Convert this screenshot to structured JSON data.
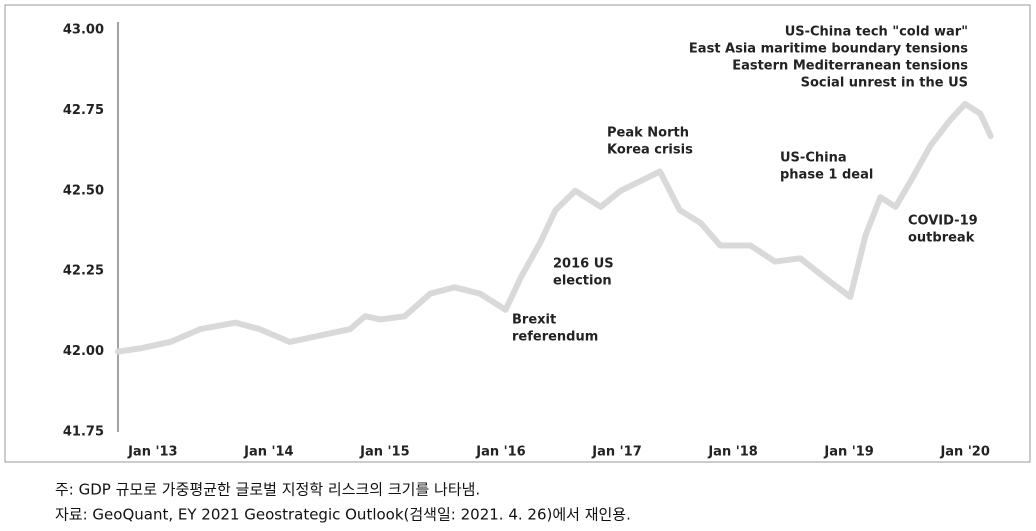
{
  "chart_data": {
    "type": "line",
    "x": [
      2012.7,
      2012.89,
      2013.15,
      2013.41,
      2013.71,
      2013.92,
      2014.18,
      2014.44,
      2014.7,
      2014.83,
      2014.96,
      2015.17,
      2015.39,
      2015.6,
      2015.82,
      2016.04,
      2016.17,
      2016.34,
      2016.47,
      2016.64,
      2016.86,
      2017.03,
      2017.2,
      2017.37,
      2017.54,
      2017.72,
      2017.89,
      2018.15,
      2018.36,
      2018.58,
      2018.79,
      2019.01,
      2019.14,
      2019.27,
      2019.4,
      2019.53,
      2019.7,
      2019.87,
      2020.0,
      2020.13,
      2020.22
    ],
    "series": [
      {
        "color": "#d9d9d9",
        "values": [
          42.0,
          42.01,
          42.03,
          42.07,
          42.09,
          42.07,
          42.03,
          42.05,
          42.07,
          42.11,
          42.1,
          42.11,
          42.18,
          42.2,
          42.18,
          42.13,
          42.23,
          42.34,
          42.44,
          42.5,
          42.45,
          42.5,
          42.53,
          42.56,
          42.44,
          42.4,
          42.33,
          42.33,
          42.28,
          42.29,
          42.23,
          42.17,
          42.36,
          42.48,
          42.45,
          42.53,
          42.64,
          42.72,
          42.77,
          42.74,
          42.67
        ]
      }
    ],
    "xlim": [
      2012.7,
      2020.3
    ],
    "ylim": [
      41.75,
      43.0
    ],
    "xticks": [
      {
        "value": 2013,
        "label": "Jan '13"
      },
      {
        "value": 2014,
        "label": "Jan '14"
      },
      {
        "value": 2015,
        "label": "Jan '15"
      },
      {
        "value": 2016,
        "label": "Jan '16"
      },
      {
        "value": 2017,
        "label": "Jan '17"
      },
      {
        "value": 2018,
        "label": "Jan '18"
      },
      {
        "value": 2019,
        "label": "Jan '19"
      },
      {
        "value": 2020,
        "label": "Jan '20"
      }
    ],
    "yticks": [
      {
        "value": 41.75,
        "label": "41.75"
      },
      {
        "value": 42.0,
        "label": "42.00"
      },
      {
        "value": 42.25,
        "label": "42.25"
      },
      {
        "value": 42.5,
        "label": "42.50"
      },
      {
        "value": 42.75,
        "label": "42.75"
      },
      {
        "value": 43.0,
        "label": "43.00"
      }
    ],
    "annotations": [
      [
        "US-China tech \"cold war\"",
        "East Asia maritime boundary tensions",
        "Eastern Mediterranean tensions",
        "Social unrest in the US"
      ],
      [
        "Peak North",
        "Korea crisis"
      ],
      [
        "US-China",
        "phase 1 deal"
      ],
      [
        "COVID-19",
        "outbreak"
      ],
      [
        "2016 US",
        "election"
      ],
      [
        "Brexit",
        "referendum"
      ]
    ],
    "notes": [
      "주: GDP 규모로 가중평균한 글로벌 지정학 리스크의 크기를 나타냄.",
      "자료: GeoQuant, EY 2021 Geostrategic Outlook(검색일: 2021. 4. 26)에서 재인용."
    ]
  }
}
